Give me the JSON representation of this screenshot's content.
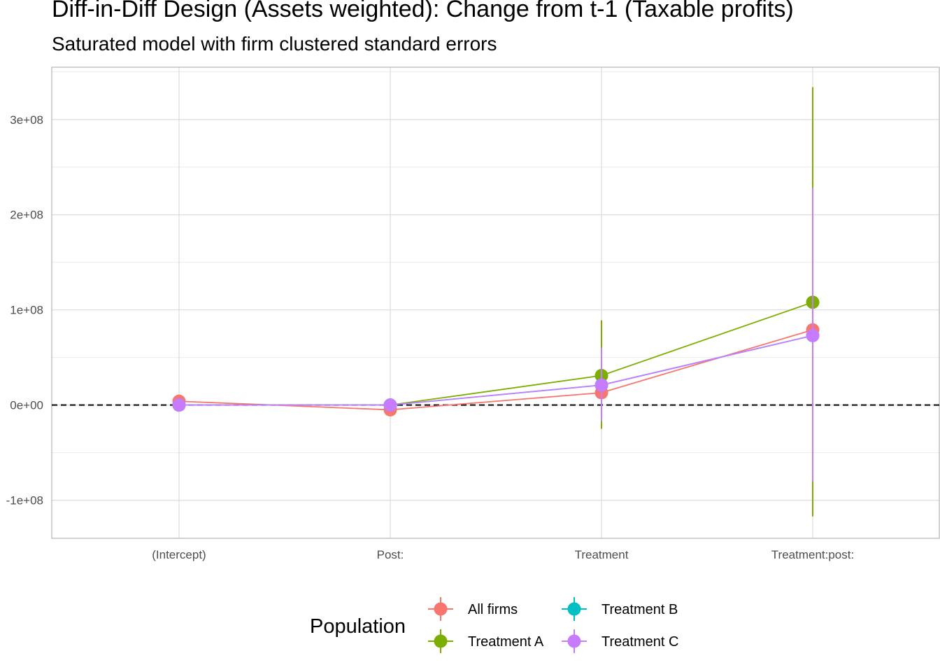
{
  "chart_data": {
    "type": "scatter",
    "title": "Diff-in-Diff Design (Assets weighted): Change from t-1 (Taxable profits)",
    "subtitle": "Saturated model with firm clustered standard errors",
    "xlabel": "",
    "ylabel": "",
    "categories": [
      "(Intercept)",
      "Post:",
      "Treatment",
      "Treatment:post:"
    ],
    "y_ticks": [
      -100000000,
      0,
      100000000,
      200000000,
      300000000
    ],
    "y_tick_labels": [
      "-1e+08",
      "0e+00",
      "1e+08",
      "2e+08",
      "3e+08"
    ],
    "ylim": [
      -140000000,
      355000000
    ],
    "reference_line": {
      "y": 0,
      "style": "dashed"
    },
    "grid": true,
    "legend": {
      "title": "Population",
      "position": "bottom"
    },
    "series": [
      {
        "name": "All firms",
        "color": "#F8766D",
        "values": [
          4000000,
          -5000000,
          13000000,
          79000000
        ],
        "lower": [
          4000000,
          -5000000,
          13000000,
          79000000
        ],
        "upper": [
          4000000,
          -5000000,
          13000000,
          79000000
        ]
      },
      {
        "name": "Treatment A",
        "color": "#7CAE00",
        "values": [
          0,
          0,
          31000000,
          108000000
        ],
        "lower": [
          0,
          0,
          -25000000,
          -117000000
        ],
        "upper": [
          0,
          0,
          89000000,
          334000000
        ]
      },
      {
        "name": "Treatment B",
        "color": "#00BFC4",
        "values": [
          0,
          0,
          21000000,
          73000000
        ],
        "lower": [
          0,
          0,
          21000000,
          73000000
        ],
        "upper": [
          0,
          0,
          21000000,
          73000000
        ]
      },
      {
        "name": "Treatment C",
        "color": "#C77CFF",
        "values": [
          0,
          0,
          21000000,
          73000000
        ],
        "lower": [
          0,
          0,
          -17000000,
          -80000000
        ],
        "upper": [
          0,
          0,
          60000000,
          228000000
        ]
      }
    ]
  }
}
